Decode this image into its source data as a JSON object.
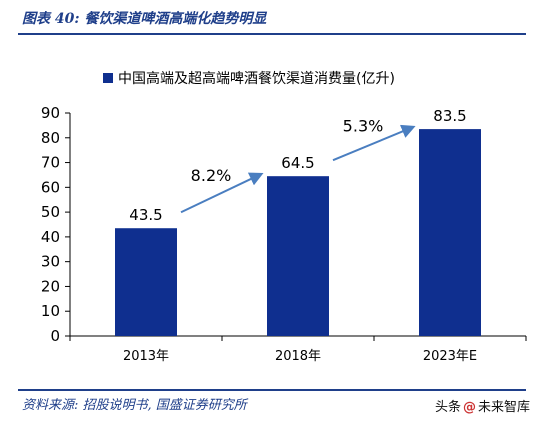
{
  "header": {
    "title": "图表 40:  餐饮渠道啤酒高端化趋势明显"
  },
  "footer": {
    "source": "资料来源: 招股说明书,  国盛证券研究所",
    "watermark_prefix": "头条",
    "watermark_suffix": "未来智库"
  },
  "colors": {
    "bar": "#0f2f8f",
    "arrow": "#4a7ec0",
    "title": "#1f3f8a"
  },
  "icons": {
    "watermark": "at-sign-icon"
  },
  "chart_data": {
    "type": "bar",
    "categories": [
      "2013年",
      "2018年",
      "2023年E"
    ],
    "series": [
      {
        "name": "中国高端及超高端啤酒餐饮渠道消费量(亿升)",
        "values": [
          43.5,
          64.5,
          83.5
        ]
      }
    ],
    "data_labels": [
      "43.5",
      "64.5",
      "83.5"
    ],
    "y_ticks": [
      0,
      10,
      20,
      30,
      40,
      50,
      60,
      70,
      80,
      90
    ],
    "ylim": [
      0,
      90
    ],
    "legend_position": "top",
    "grid": false,
    "annotations": [
      {
        "text": "8.2%",
        "from": "2013年",
        "to": "2018年"
      },
      {
        "text": "5.3%",
        "from": "2018年",
        "to": "2023年E"
      }
    ]
  }
}
